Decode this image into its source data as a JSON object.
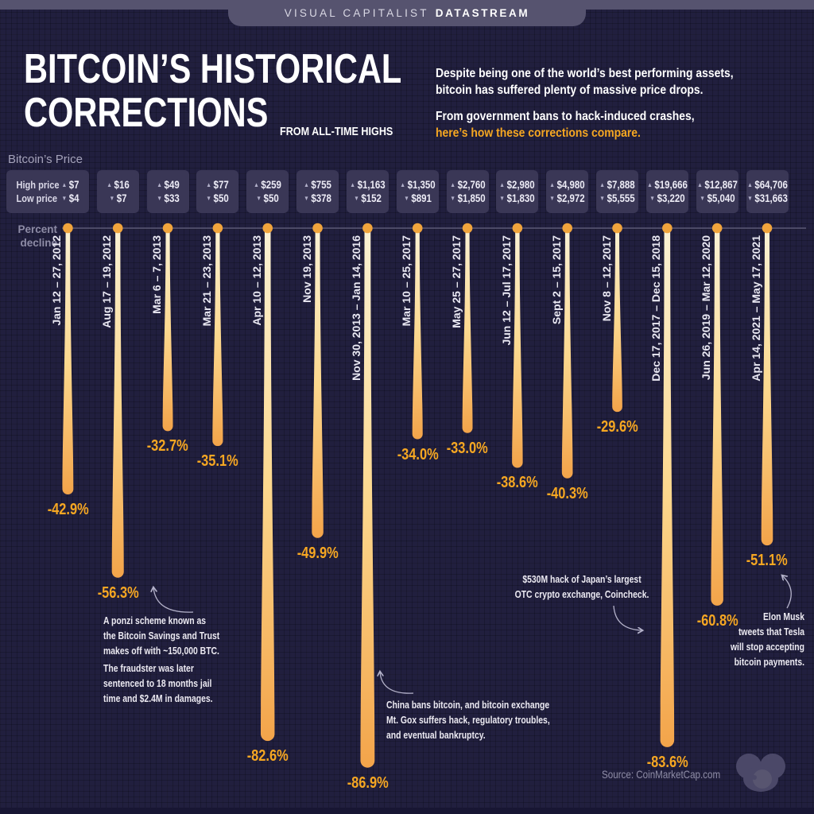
{
  "banner": {
    "brand": "VISUAL CAPITALIST",
    "product": "DATASTREAM"
  },
  "header": {
    "title_line1": "BITCOIN’S HISTORICAL",
    "title_line2": "CORRECTIONS",
    "subtitle": "FROM ALL-TIME HIGHS",
    "intro": "Despite being one of the world’s best performing assets,\nbitcoin has suffered plenty of massive price drops.",
    "intro2_line1": "From government bans to hack-induced crashes,",
    "intro2_line2": "here’s how these corrections compare."
  },
  "price_panel": {
    "label": "Bitcoin’s Price",
    "high_label": "High price",
    "low_label": "Low price"
  },
  "axis": {
    "label": "Percent\ndecline"
  },
  "chart_data": {
    "type": "bar",
    "title": "Bitcoin’s Historical Corrections from All-Time Highs",
    "ylabel": "Percent decline",
    "ylim": [
      -100,
      0
    ],
    "legend_position": "none",
    "grid": false,
    "categories": [
      "Jan 12 – 27, 2012",
      "Aug 17 – 19, 2012",
      "Mar 6 – 7, 2013",
      "Mar 21 – 23, 2013",
      "Apr 10 – 12, 2013",
      "Nov 19, 2013",
      "Nov 30, 2013 – Jan 14, 2016",
      "Mar 10 – 25, 2017",
      "May 25 – 27, 2017",
      "Jun 12 – Jul 17, 2017",
      "Sept 2 – 15, 2017",
      "Nov 8 – 12, 2017",
      "Dec 17, 2017 – Dec 15, 2018",
      "Jun 26, 2019 – Mar 12, 2020",
      "Apr 14, 2021 – May 17, 2021"
    ],
    "series": [
      {
        "name": "Percent decline",
        "unit": "%",
        "values": [
          -42.9,
          -56.3,
          -32.7,
          -35.1,
          -82.6,
          -49.9,
          -86.9,
          -34.0,
          -33.0,
          -38.6,
          -40.3,
          -29.6,
          -83.6,
          -60.8,
          -51.1
        ]
      },
      {
        "name": "High price",
        "unit": "USD",
        "values": [
          7,
          16,
          49,
          77,
          259,
          755,
          1163,
          1350,
          2760,
          2980,
          4980,
          7888,
          19666,
          12867,
          64706
        ]
      },
      {
        "name": "Low price",
        "unit": "USD",
        "values": [
          4,
          7,
          33,
          50,
          50,
          378,
          152,
          891,
          1850,
          1830,
          2972,
          5555,
          3220,
          5040,
          31663
        ]
      }
    ]
  },
  "annotations": {
    "ponzi_p1": "A ponzi scheme known as\nthe Bitcoin Savings and Trust\nmakes off with ~150,000 BTC.",
    "ponzi_p2": "The fraudster was later\nsentenced to 18 months jail\ntime and $2.4M in damages.",
    "china": "China bans bitcoin, and bitcoin exchange\nMt. Gox suffers hack, regulatory troubles,\nand eventual bankruptcy.",
    "coincheck": "$530M hack of Japan’s largest\nOTC crypto exchange, Coincheck.",
    "elon": "Elon Musk\ntweets that Tesla\nwill stop accepting\nbitcoin payments."
  },
  "source": "Source: CoinMarketCap.com",
  "colors": {
    "background": "#211f3e",
    "banner": "#56536f",
    "accent_orange": "#f6a722",
    "drip_top": "#faf1d4",
    "drip_mid": "#fcd88e",
    "drip_bottom": "#f3a44a",
    "dot": "#f0a43c",
    "box_bg": "#3a3756",
    "muted_text": "#8f8da7",
    "baseline": "#5b5875",
    "arrow": "#b4b2ca"
  }
}
